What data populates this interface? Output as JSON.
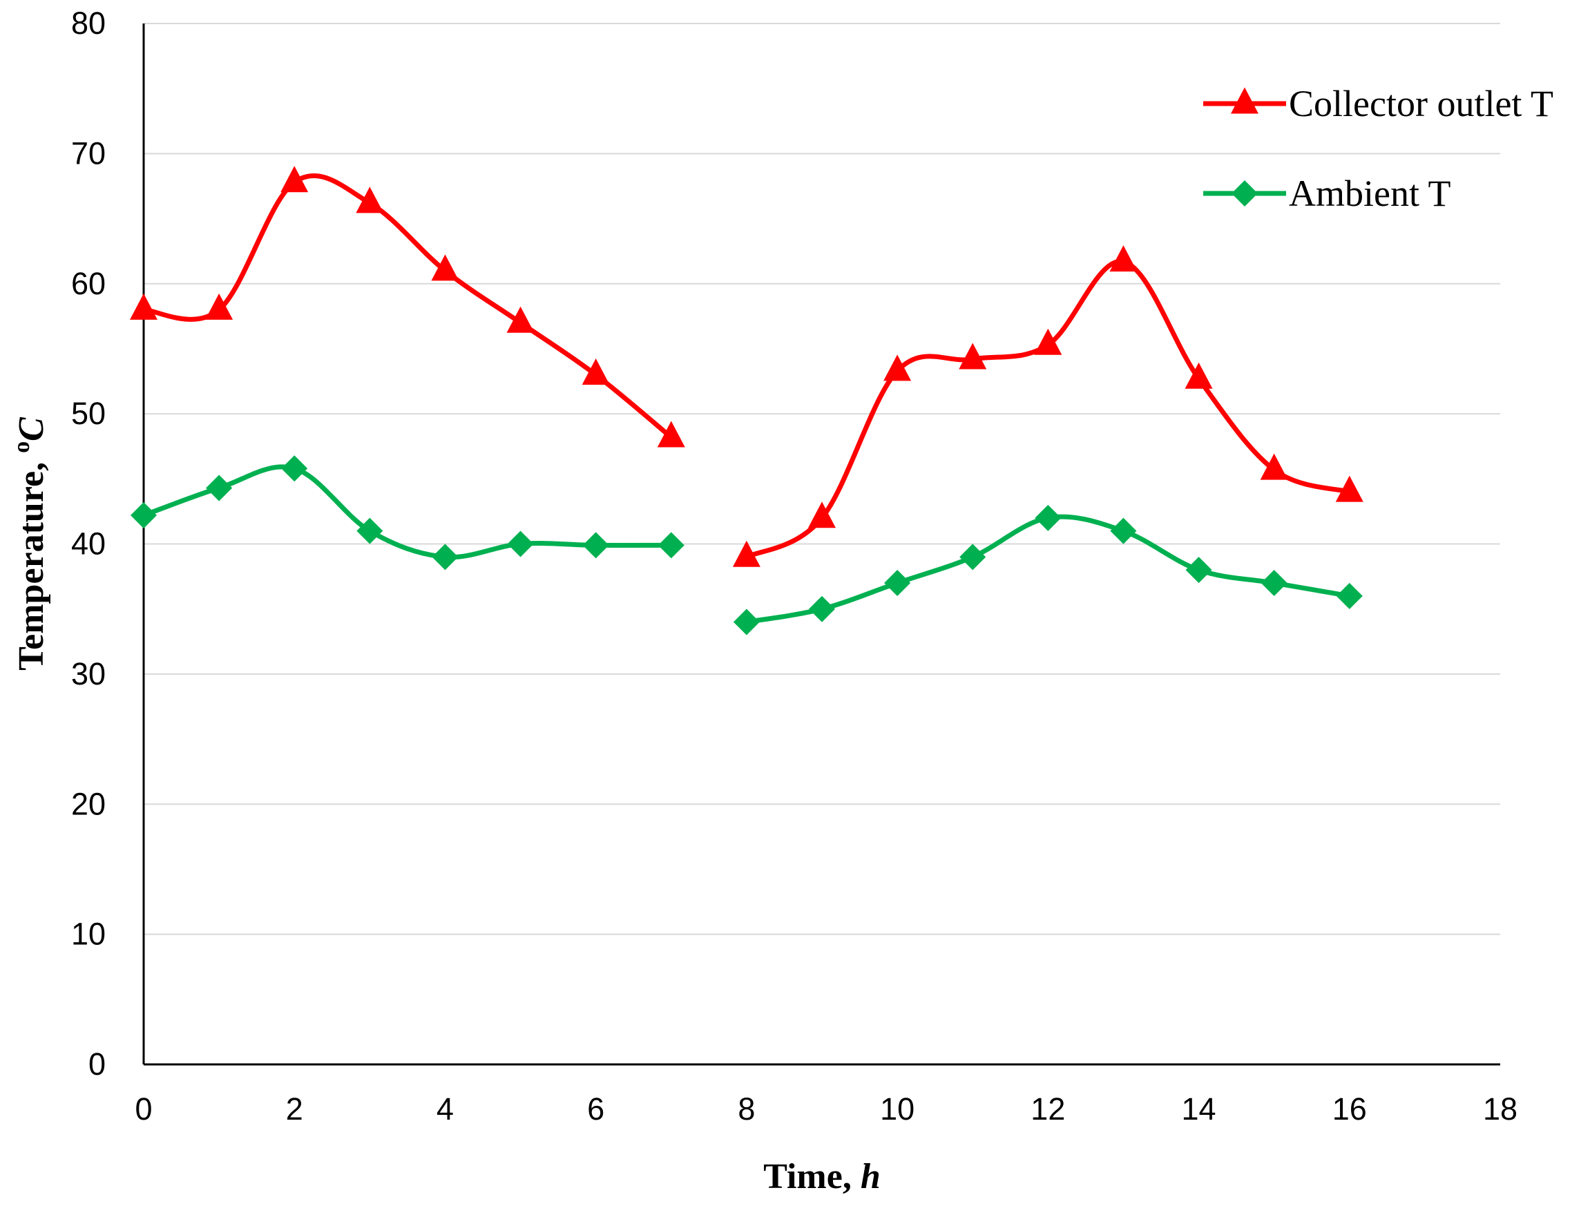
{
  "chart_data": {
    "type": "line",
    "title": "",
    "xlabel": "Time, ",
    "xlabel_unit": "h",
    "ylabel": "Temperature, ",
    "ylabel_unit": "C",
    "ylabel_unit_sup": "o",
    "xlim": [
      0,
      18
    ],
    "ylim": [
      0,
      80
    ],
    "x_ticks": [
      0,
      2,
      4,
      6,
      8,
      10,
      12,
      14,
      16,
      18
    ],
    "y_ticks": [
      0,
      10,
      20,
      30,
      40,
      50,
      60,
      70,
      80
    ],
    "grid": "horizontal",
    "smooth": true,
    "legend_position": "top-right",
    "series": [
      {
        "name": "Collector outlet T",
        "color": "#ff0000",
        "marker": "triangle",
        "segments": [
          [
            [
              0,
              58
            ],
            [
              1,
              58
            ],
            [
              2,
              67.8
            ],
            [
              3,
              66.2
            ],
            [
              4,
              61
            ],
            [
              5,
              57
            ],
            [
              6,
              53
            ],
            [
              7,
              48.2
            ]
          ],
          [
            [
              8,
              39
            ],
            [
              9,
              42
            ],
            [
              10,
              53.3
            ],
            [
              11,
              54.2
            ],
            [
              12,
              55.3
            ],
            [
              13,
              61.7
            ],
            [
              14,
              52.7
            ],
            [
              15,
              45.7
            ],
            [
              16,
              44
            ]
          ]
        ]
      },
      {
        "name": "Ambient T",
        "color": "#00b050",
        "marker": "diamond",
        "segments": [
          [
            [
              0,
              42.2
            ],
            [
              1,
              44.3
            ],
            [
              2,
              45.8
            ],
            [
              3,
              41
            ],
            [
              4,
              39
            ],
            [
              5,
              40
            ],
            [
              6,
              39.9
            ],
            [
              7,
              39.9
            ]
          ],
          [
            [
              8,
              34
            ],
            [
              9,
              35
            ],
            [
              10,
              37
            ],
            [
              11,
              39
            ],
            [
              12,
              42
            ],
            [
              13,
              41
            ],
            [
              14,
              38
            ],
            [
              15,
              37
            ],
            [
              16,
              36
            ]
          ]
        ]
      }
    ]
  }
}
